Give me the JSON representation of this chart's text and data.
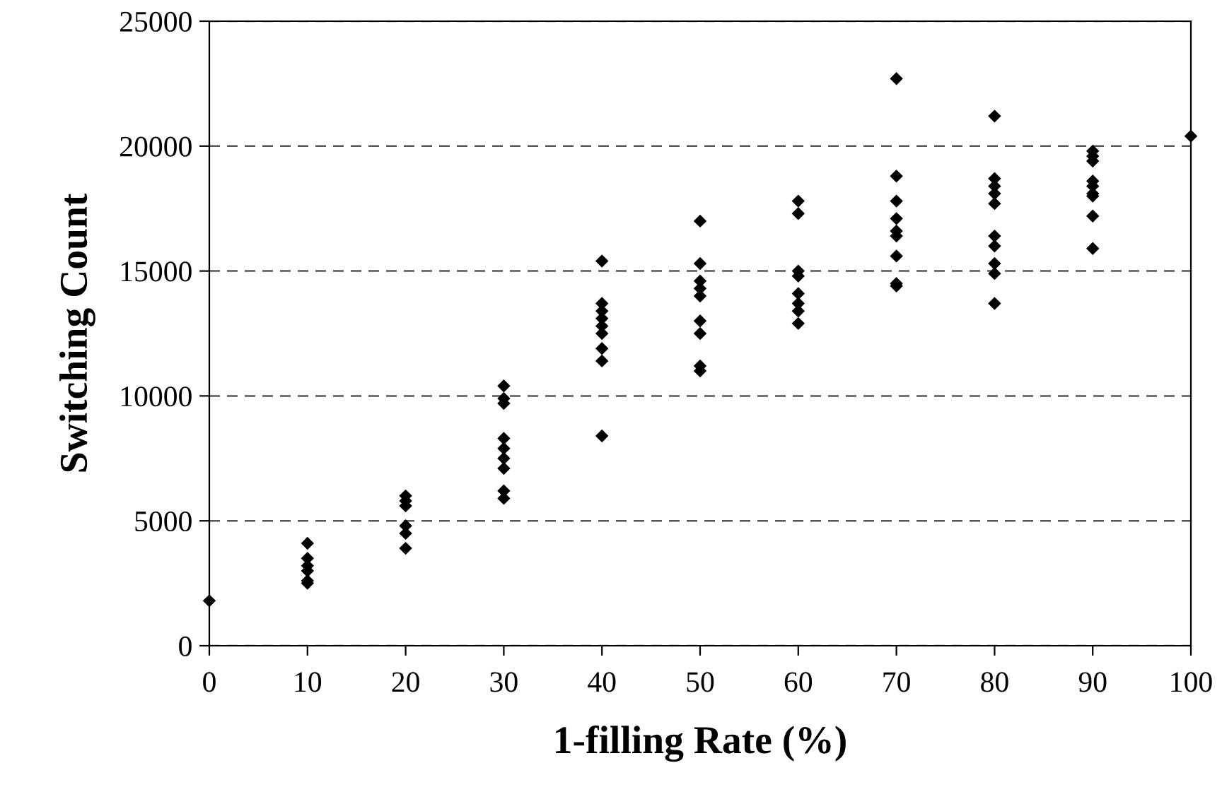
{
  "chart_data": {
    "type": "scatter",
    "xlabel": "1-filling Rate (%)",
    "ylabel": "Switching Count",
    "x": [
      0,
      10,
      10,
      10,
      10,
      10,
      10,
      20,
      20,
      20,
      20,
      20,
      20,
      30,
      30,
      30,
      30,
      30,
      30,
      30,
      30,
      30,
      40,
      40,
      40,
      40,
      40,
      40,
      40,
      40,
      40,
      50,
      50,
      50,
      50,
      50,
      50,
      50,
      50,
      50,
      60,
      60,
      60,
      60,
      60,
      60,
      60,
      60,
      70,
      70,
      70,
      70,
      70,
      70,
      70,
      70,
      70,
      80,
      80,
      80,
      80,
      80,
      80,
      80,
      80,
      80,
      80,
      90,
      90,
      90,
      90,
      90,
      90,
      90,
      90,
      90,
      100
    ],
    "series": [
      {
        "color": "#000000",
        "values": [
          1800,
          4100,
          3500,
          3200,
          3000,
          2600,
          2500,
          6000,
          5800,
          5600,
          4800,
          4500,
          3900,
          10400,
          9900,
          9700,
          8300,
          7900,
          7500,
          7100,
          6200,
          5900,
          15400,
          13700,
          13400,
          13100,
          12800,
          12500,
          11900,
          11400,
          8400,
          17000,
          15300,
          14600,
          14300,
          14000,
          13000,
          12500,
          11200,
          11000,
          17800,
          17300,
          15000,
          14800,
          14100,
          13700,
          13400,
          12900,
          22700,
          18800,
          17800,
          17100,
          16600,
          16400,
          15600,
          14500,
          14400,
          21200,
          18700,
          18400,
          18100,
          17700,
          16400,
          16000,
          15300,
          14900,
          13700,
          19800,
          19600,
          19400,
          18600,
          18400,
          18100,
          18000,
          17200,
          15900,
          20400
        ]
      }
    ],
    "xlim": [
      0,
      100
    ],
    "xticks": [
      0,
      10,
      20,
      30,
      40,
      50,
      60,
      70,
      80,
      90,
      100
    ],
    "ylim": [
      0,
      25000
    ],
    "yticks": [
      0,
      5000,
      10000,
      15000,
      20000,
      25000
    ],
    "grid": "y",
    "marker": "diamond"
  }
}
